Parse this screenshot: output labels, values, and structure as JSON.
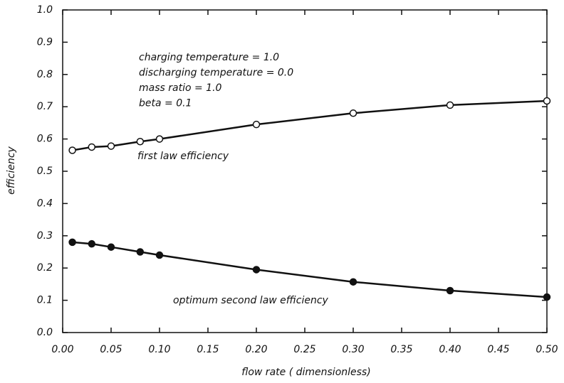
{
  "chart_data": {
    "type": "line",
    "x_label": "flow rate ( dimensionless)",
    "y_label": "efficiency",
    "annotations": [
      "charging temperature = 1.0",
      "discharging temperature = 0.0",
      "mass ratio = 1.0",
      "beta = 0.1"
    ],
    "x": [
      0.01,
      0.03,
      0.05,
      0.08,
      0.1,
      0.2,
      0.3,
      0.4,
      0.5
    ],
    "series": [
      {
        "name": "first law efficiency",
        "color": "#111111",
        "marker": "open",
        "values": [
          0.565,
          0.575,
          0.578,
          0.592,
          0.6,
          0.645,
          0.68,
          0.705,
          0.718
        ]
      },
      {
        "name": "optimum second law efficiency",
        "color": "#111111",
        "marker": "filled",
        "values": [
          0.28,
          0.275,
          0.265,
          0.25,
          0.24,
          0.195,
          0.157,
          0.13,
          0.11
        ]
      }
    ],
    "xlim": [
      0,
      0.5
    ],
    "ylim": [
      0,
      1
    ],
    "xticks": [
      {
        "value": 0,
        "label": "0.00"
      },
      0.05,
      {
        "value": 0.1,
        "label": "0.10"
      },
      0.15,
      {
        "value": 0.2,
        "label": "0.20"
      },
      0.25,
      {
        "value": 0.3,
        "label": "0.30"
      },
      0.35,
      {
        "value": 0.4,
        "label": "0.40"
      },
      0.45,
      {
        "value": 0.5,
        "label": "0.50"
      }
    ],
    "yticks": [
      {
        "value": 0,
        "label": "0.0"
      },
      0.1,
      0.2,
      0.3,
      0.4,
      0.5,
      0.6,
      0.7,
      0.8,
      0.9,
      {
        "value": 1,
        "label": "1.0"
      }
    ],
    "grid": false
  }
}
